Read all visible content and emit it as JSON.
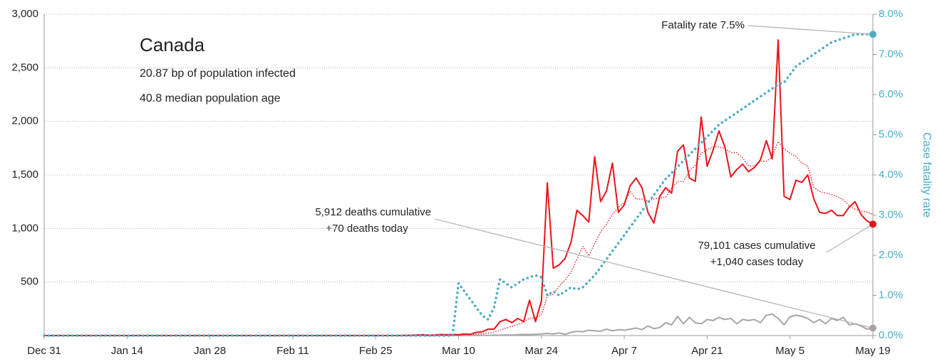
{
  "chart_data": {
    "type": "line",
    "title": "Canada",
    "subtitle_lines": [
      "20.87 bp of population infected",
      "40.8 median population age"
    ],
    "y2_label": "Case fatality rate",
    "annotations": {
      "fatality": "Fatality rate 7.5%",
      "deaths": [
        "5,912 deaths cumulative",
        "+70 deaths today"
      ],
      "cases": [
        "79,101 cases cumulative",
        "+1,040 cases today"
      ]
    },
    "categories": [
      "Dec 31",
      null,
      null,
      null,
      null,
      null,
      null,
      null,
      null,
      null,
      null,
      null,
      null,
      null,
      "Jan 14",
      null,
      null,
      null,
      null,
      null,
      null,
      null,
      null,
      null,
      null,
      null,
      null,
      null,
      "Jan 28",
      null,
      null,
      null,
      null,
      null,
      null,
      null,
      null,
      null,
      null,
      null,
      null,
      null,
      "Feb 11",
      null,
      null,
      null,
      null,
      null,
      null,
      null,
      null,
      null,
      null,
      null,
      null,
      null,
      "Feb 25",
      null,
      null,
      null,
      null,
      null,
      null,
      null,
      null,
      null,
      null,
      null,
      null,
      null,
      "Mar 10",
      null,
      null,
      null,
      null,
      null,
      null,
      null,
      null,
      null,
      null,
      null,
      null,
      null,
      "Mar 24",
      null,
      null,
      null,
      null,
      null,
      null,
      null,
      null,
      null,
      null,
      null,
      null,
      null,
      "Apr 7",
      null,
      null,
      null,
      null,
      null,
      null,
      null,
      null,
      null,
      null,
      null,
      null,
      null,
      "Apr 21",
      null,
      null,
      null,
      null,
      null,
      null,
      null,
      null,
      null,
      null,
      null,
      null,
      null,
      "May 5",
      null,
      null,
      null,
      null,
      null,
      null,
      null,
      null,
      null,
      null,
      null,
      null,
      null,
      "May 19"
    ],
    "series": [
      {
        "color": "#e8141b",
        "style": "solid",
        "values": [
          0,
          0,
          0,
          0,
          0,
          0,
          0,
          0,
          0,
          0,
          0,
          0,
          0,
          0,
          0,
          0,
          0,
          0,
          0,
          0,
          0,
          0,
          0,
          0,
          0,
          0,
          0,
          0,
          0,
          0,
          0,
          0,
          0,
          0,
          0,
          0,
          0,
          0,
          0,
          0,
          0,
          0,
          0,
          0,
          0,
          0,
          0,
          0,
          0,
          0,
          0,
          0,
          0,
          0,
          0,
          0,
          0,
          0,
          0,
          0,
          0,
          2,
          3,
          5,
          8,
          3,
          5,
          10,
          8,
          10,
          8,
          15,
          12,
          30,
          35,
          60,
          60,
          130,
          150,
          120,
          160,
          130,
          330,
          130,
          320,
          1425,
          630,
          660,
          720,
          870,
          1170,
          1120,
          1060,
          1670,
          1250,
          1350,
          1610,
          1150,
          1220,
          1400,
          1470,
          1380,
          1150,
          1050,
          1300,
          1380,
          1330,
          1720,
          1780,
          1470,
          1440,
          2040,
          1580,
          1730,
          1910,
          1760,
          1480,
          1550,
          1600,
          1530,
          1570,
          1640,
          1820,
          1650,
          2760,
          1300,
          1270,
          1450,
          1430,
          1500,
          1280,
          1150,
          1140,
          1170,
          1120,
          1120,
          1200,
          1250,
          1130,
          1070,
          1040
        ]
      },
      {
        "color": "#e8141b",
        "style": "dotted",
        "values": [
          0,
          0,
          0,
          0,
          0,
          0,
          0,
          0,
          0,
          0,
          0,
          0,
          0,
          0,
          0,
          0,
          0,
          0,
          0,
          0,
          0,
          0,
          0,
          0,
          0,
          0,
          0,
          0,
          0,
          0,
          0,
          0,
          0,
          0,
          0,
          0,
          0,
          0,
          0,
          0,
          0,
          0,
          0,
          0,
          0,
          0,
          0,
          0,
          0,
          0,
          0,
          0,
          0,
          0,
          0,
          0,
          0,
          0,
          0,
          0,
          0,
          1,
          2,
          3,
          4,
          4,
          5,
          6,
          6,
          7,
          7,
          9,
          10,
          13,
          17,
          24,
          31,
          50,
          69,
          85,
          105,
          124,
          163,
          164,
          191,
          369,
          386,
          463,
          519,
          591,
          712,
          833,
          743,
          862,
          968,
          1037,
          1131,
          1196,
          1239,
          1347,
          1276,
          1274,
          1256,
          1275,
          1283,
          1292,
          1380,
          1437,
          1439,
          1535,
          1590,
          1700,
          1737,
          1760,
          1763,
          1747,
          1708,
          1708,
          1659,
          1583,
          1584,
          1625,
          1627,
          1667,
          1812,
          1744,
          1701,
          1672,
          1612,
          1580,
          1385,
          1346,
          1330,
          1317,
          1297,
          1268,
          1212,
          1179,
          1164,
          1154,
          1131
        ]
      },
      {
        "color": "#a6a6a6",
        "style": "solid",
        "values": [
          0,
          0,
          0,
          0,
          0,
          0,
          0,
          0,
          0,
          0,
          0,
          0,
          0,
          0,
          0,
          0,
          0,
          0,
          0,
          0,
          0,
          0,
          0,
          0,
          0,
          0,
          0,
          0,
          0,
          0,
          0,
          0,
          0,
          0,
          0,
          0,
          0,
          0,
          0,
          0,
          0,
          0,
          0,
          0,
          0,
          0,
          0,
          0,
          0,
          0,
          0,
          0,
          0,
          0,
          0,
          0,
          0,
          0,
          0,
          0,
          0,
          0,
          0,
          0,
          0,
          0,
          0,
          0,
          0,
          0,
          0,
          1,
          1,
          2,
          3,
          2,
          5,
          4,
          6,
          5,
          8,
          10,
          9,
          12,
          15,
          20,
          15,
          25,
          10,
          30,
          40,
          35,
          50,
          45,
          40,
          60,
          45,
          55,
          50,
          60,
          70,
          55,
          90,
          65,
          75,
          120,
          100,
          180,
          110,
          170,
          120,
          110,
          150,
          140,
          170,
          150,
          160,
          110,
          150,
          140,
          150,
          120,
          190,
          200,
          160,
          100,
          175,
          190,
          180,
          160,
          120,
          150,
          110,
          160,
          140,
          170,
          100,
          110,
          90,
          60,
          70
        ]
      },
      {
        "color": "#4bacc6",
        "style": "dots",
        "axis": "y2",
        "values": [
          0,
          0,
          0,
          0,
          0,
          0,
          0,
          0,
          0,
          0,
          0,
          0,
          0,
          0,
          0,
          0,
          0,
          0,
          0,
          0,
          0,
          0,
          0,
          0,
          0,
          0,
          0,
          0,
          0,
          0,
          0,
          0,
          0,
          0,
          0,
          0,
          0,
          0,
          0,
          0,
          0,
          0,
          0,
          0,
          0,
          0,
          0,
          0,
          0,
          0,
          0,
          0,
          0,
          0,
          0,
          0,
          0,
          0,
          0,
          0,
          0,
          0,
          0,
          0,
          0,
          0,
          0,
          0,
          0,
          0,
          1.3,
          1.1,
          0.9,
          0.7,
          0.5,
          0.4,
          0.7,
          1.4,
          1.3,
          1.2,
          1.3,
          1.4,
          1.45,
          1.5,
          1.45,
          1.0,
          1.1,
          1.0,
          1.1,
          1.2,
          1.15,
          1.2,
          1.35,
          1.5,
          1.7,
          1.9,
          2.1,
          2.3,
          2.5,
          2.7,
          2.9,
          3.1,
          3.3,
          3.5,
          3.7,
          3.9,
          4.05,
          4.2,
          4.35,
          4.5,
          4.65,
          4.8,
          4.95,
          5.1,
          5.25,
          5.35,
          5.45,
          5.55,
          5.65,
          5.75,
          5.85,
          5.95,
          6.05,
          6.15,
          6.25,
          6.3,
          6.5,
          6.7,
          6.8,
          6.9,
          7.0,
          7.1,
          7.2,
          7.3,
          7.35,
          7.4,
          7.45,
          7.5,
          7.5,
          7.5,
          7.5
        ]
      }
    ],
    "ylim": [
      0,
      3000
    ],
    "yticks": [
      500,
      {
        "value": 1000,
        "label": "1,000"
      },
      {
        "value": 1500,
        "label": "1,500"
      },
      {
        "value": 2000,
        "label": "2,000"
      },
      {
        "value": 2500,
        "label": "2,500"
      },
      {
        "value": 3000,
        "label": "3,000"
      }
    ],
    "y2lim": [
      0,
      8
    ],
    "y2ticks": [
      {
        "value": 0,
        "label": "0.0%"
      },
      {
        "value": 1,
        "label": "1.0%"
      },
      {
        "value": 2,
        "label": "2.0%"
      },
      {
        "value": 3,
        "label": "3.0%"
      },
      {
        "value": 4,
        "label": "4.0%"
      },
      {
        "value": 5,
        "label": "5.0%"
      },
      {
        "value": 6,
        "label": "6.0%"
      },
      {
        "value": 7,
        "label": "7.0%"
      },
      {
        "value": 8,
        "label": "8.0%"
      }
    ],
    "grid": true
  }
}
